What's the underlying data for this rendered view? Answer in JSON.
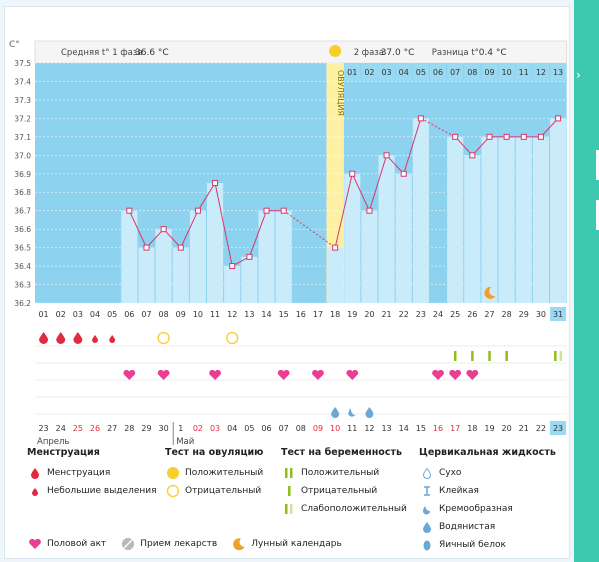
{
  "unit_label": "C°",
  "header": {
    "phase1_label": "Средняя t° 1 фаза",
    "phase1_value": "36.6 °C",
    "phase2_label": "2 фаза",
    "phase2_value": "37.0 °C",
    "diff_label": "Разница t°",
    "diff_value": "0.4 °C"
  },
  "ovulation_label": "ОВУЛЯЦИЯ",
  "chart_data": {
    "type": "line",
    "ylim": [
      36.2,
      37.5
    ],
    "yticks": [
      "37.5",
      "37.4",
      "37.3",
      "37.2",
      "37.1",
      "37.0",
      "36.9",
      "36.8",
      "36.7",
      "36.6",
      "36.5",
      "36.4",
      "36.3",
      "36.2"
    ],
    "days": [
      "01",
      "02",
      "03",
      "04",
      "05",
      "06",
      "07",
      "08",
      "09",
      "10",
      "11",
      "12",
      "13",
      "14",
      "15",
      "16",
      "17",
      "18",
      "19",
      "20",
      "21",
      "22",
      "23",
      "24",
      "25",
      "26",
      "27",
      "28",
      "29",
      "30",
      "31"
    ],
    "top_days": [
      "01",
      "02",
      "03",
      "04",
      "05",
      "06",
      "07",
      "08",
      "09",
      "10",
      "11",
      "12",
      "13"
    ],
    "values": [
      null,
      null,
      null,
      null,
      null,
      36.7,
      36.5,
      36.6,
      36.5,
      36.7,
      36.85,
      36.4,
      36.45,
      36.7,
      36.7,
      null,
      null,
      36.5,
      36.9,
      36.7,
      37.0,
      36.9,
      37.2,
      null,
      37.1,
      37.0,
      37.1,
      37.1,
      37.1,
      37.1,
      37.2
    ],
    "ovulation_day": 18,
    "highlight_day": "31",
    "colors": {
      "sky": "#8dd2ef",
      "bar": "#c9ebfa",
      "line": "#d9376a",
      "ovulation": "#fff1a3"
    }
  },
  "markers": {
    "menstruation_heavy": [
      1,
      2,
      3
    ],
    "menstruation_light": [
      4,
      5
    ],
    "ovulation_test_negative": [
      8,
      12
    ],
    "pregnancy_test_positive": [
      25,
      26,
      27,
      28
    ],
    "pregnancy_test_weak": [
      31
    ],
    "intercourse": [
      6,
      8,
      11,
      15,
      17,
      19,
      24,
      25,
      26
    ],
    "fluid_watery": [
      18,
      20
    ],
    "fluid_creamy": [
      19
    ],
    "moon_day": 27
  },
  "calendar": {
    "dates": [
      "23",
      "24",
      "25",
      "26",
      "27",
      "28",
      "29",
      "30",
      "1",
      "02",
      "03",
      "04",
      "05",
      "06",
      "07",
      "08",
      "09",
      "10",
      "11",
      "12",
      "13",
      "14",
      "15",
      "16",
      "17",
      "18",
      "19",
      "20",
      "21",
      "22",
      "23"
    ],
    "red": [
      "25",
      "26",
      "02",
      "03",
      "09",
      "10",
      "16",
      "17"
    ],
    "month1": "Апрель",
    "month2": "Май"
  },
  "legend": {
    "menstruation": {
      "title": "Менструация",
      "items": [
        "Менструация",
        "Небольшие выделения"
      ]
    },
    "ovulation_test": {
      "title": "Тест на овуляцию",
      "items": [
        "Положительный",
        "Отрицательный"
      ]
    },
    "pregnancy_test": {
      "title": "Тест на беременность",
      "items": [
        "Положительный",
        "Отрицательный",
        "Слабоположительный"
      ]
    },
    "cervical_fluid": {
      "title": "Цервикальная жидкость",
      "items": [
        "Сухо",
        "Клейкая",
        "Кремообразная",
        "Водянистая",
        "Яичный белок"
      ]
    },
    "bottom": [
      "Половой акт",
      "Прием лекарств",
      "Лунный календарь"
    ]
  }
}
